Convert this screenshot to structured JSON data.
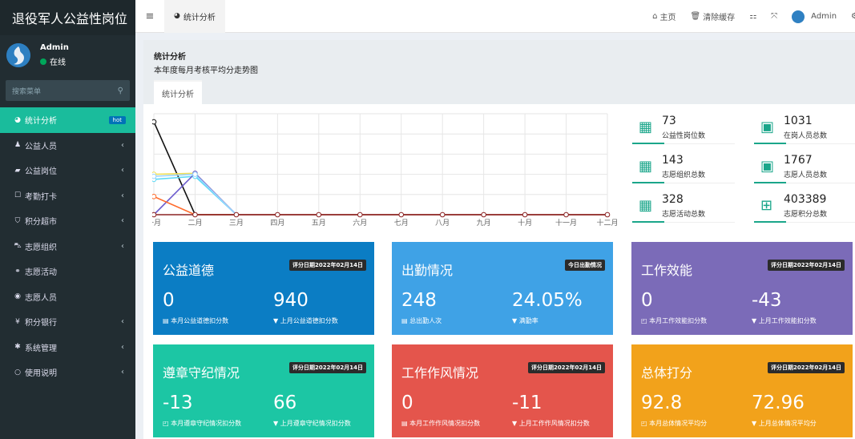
{
  "brand": "退役军人公益性岗位",
  "user": {
    "name": "Admin",
    "status": "在线"
  },
  "search": {
    "placeholder": "搜索菜单"
  },
  "menu": [
    {
      "label": "统计分析",
      "icon": "dashboard-icon",
      "glyph": "◕",
      "badge": "hot",
      "active": true
    },
    {
      "label": "公益人员",
      "icon": "user-icon",
      "glyph": "♟",
      "chevron": true
    },
    {
      "label": "公益岗位",
      "icon": "briefcase-icon",
      "glyph": "▰",
      "chevron": true
    },
    {
      "label": "考勤打卡",
      "icon": "square-icon",
      "glyph": "☐",
      "chevron": true
    },
    {
      "label": "积分超市",
      "icon": "shield-icon",
      "glyph": "⛉",
      "chevron": true
    },
    {
      "label": "志愿组织",
      "icon": "car-icon",
      "glyph": "⛍",
      "chevron": true
    },
    {
      "label": "志愿活动",
      "icon": "handshake-icon",
      "glyph": "⚭",
      "chevron": false
    },
    {
      "label": "志愿人员",
      "icon": "user-circle-icon",
      "glyph": "◉",
      "chevron": false
    },
    {
      "label": "积分银行",
      "icon": "yen-icon",
      "glyph": "¥",
      "chevron": true
    },
    {
      "label": "系统管理",
      "icon": "gear-icon",
      "glyph": "✱",
      "chevron": true
    },
    {
      "label": "使用说明",
      "icon": "circle-icon",
      "glyph": "○",
      "chevron": true
    }
  ],
  "topbar": {
    "tab": "统计分析",
    "home": "主页",
    "clear_cache": "清除缓存",
    "admin": "Admin"
  },
  "content": {
    "title": "统计分析",
    "subtitle": "本年度每月考核平均分走势图",
    "tab": "统计分析"
  },
  "chart_data": {
    "type": "line",
    "categories": [
      "一月",
      "二月",
      "三月",
      "四月",
      "五月",
      "六月",
      "七月",
      "八月",
      "九月",
      "十月",
      "十一月",
      "十二月"
    ],
    "ylim": [
      0,
      100
    ],
    "grid": true,
    "series": [
      {
        "color": "#111111",
        "values": [
          92,
          0,
          0,
          0,
          0,
          0,
          0,
          0,
          0,
          0,
          0,
          0
        ]
      },
      {
        "color": "#f1e05a",
        "values": [
          40,
          41,
          0,
          0,
          0,
          0,
          0,
          0,
          0,
          0,
          0,
          0
        ]
      },
      {
        "color": "#5fd9f5",
        "values": [
          35,
          38,
          0,
          0,
          0,
          0,
          0,
          0,
          0,
          0,
          0,
          0
        ]
      },
      {
        "color": "#6a5acd",
        "values": [
          0,
          41,
          0,
          0,
          0,
          0,
          0,
          0,
          0,
          0,
          0,
          0
        ]
      },
      {
        "color": "#9bd3ff",
        "values": [
          38,
          40,
          0,
          0,
          0,
          0,
          0,
          0,
          0,
          0,
          0,
          0
        ]
      },
      {
        "color": "#ff6a2a",
        "values": [
          18,
          0,
          0,
          0,
          0,
          0,
          0,
          0,
          0,
          0,
          0,
          0
        ]
      },
      {
        "color": "#8b2323",
        "values": [
          0,
          0,
          0,
          0,
          0,
          0,
          0,
          0,
          0,
          0,
          0,
          0
        ]
      }
    ]
  },
  "stats": [
    {
      "value": "73",
      "label": "公益性岗位数",
      "icon": "calendar-icon"
    },
    {
      "value": "1031",
      "label": "在岗人员总数",
      "icon": "id-card-icon"
    },
    {
      "value": "143",
      "label": "志愿组织总数",
      "icon": "calendar-icon"
    },
    {
      "value": "1767",
      "label": "志愿人员总数",
      "icon": "id-card-icon"
    },
    {
      "value": "328",
      "label": "志愿活动总数",
      "icon": "calendar-icon"
    },
    {
      "value": "403389",
      "label": "志愿积分总数",
      "icon": "calendar-plus-icon"
    }
  ],
  "cards": [
    {
      "title": "公益道德",
      "badge": "评分日期2022年02月14日",
      "v1": "0",
      "l1": "本月公益道德扣分数",
      "v2": "940",
      "l2": "上月公益道德扣分数",
      "color": "#0b7dc4"
    },
    {
      "title": "出勤情况",
      "badge": "今日出勤情况",
      "v1": "248",
      "l1": "总出勤人次",
      "v2": "24.05%",
      "l2": "满勤率",
      "color": "#3fa2e6"
    },
    {
      "title": "工作效能",
      "badge": "评分日期2022年02月14日",
      "v1": "0",
      "l1": "本月工作效能扣分数",
      "v2": "-43",
      "l2": "上月工作效能扣分数",
      "color": "#7b6bb8"
    },
    {
      "title": "遵章守纪情况",
      "badge": "评分日期2022年02月14日",
      "v1": "-13",
      "l1": "本月遵章守纪情况扣分数",
      "v2": "66",
      "l2": "上月遵章守纪情况扣分数",
      "color": "#1cc6a4"
    },
    {
      "title": "工作作风情况",
      "badge": "评分日期2022年02月14日",
      "v1": "0",
      "l1": "本月工作作风情况扣分数",
      "v2": "-11",
      "l2": "上月工作作风情况扣分数",
      "color": "#e4554c"
    },
    {
      "title": "总体打分",
      "badge": "评分日期2022年02月14日",
      "v1": "92.8",
      "l1": "本月总体情况平均分",
      "v2": "72.96",
      "l2": "上月总体情况平均分",
      "color": "#f2a21b"
    }
  ]
}
